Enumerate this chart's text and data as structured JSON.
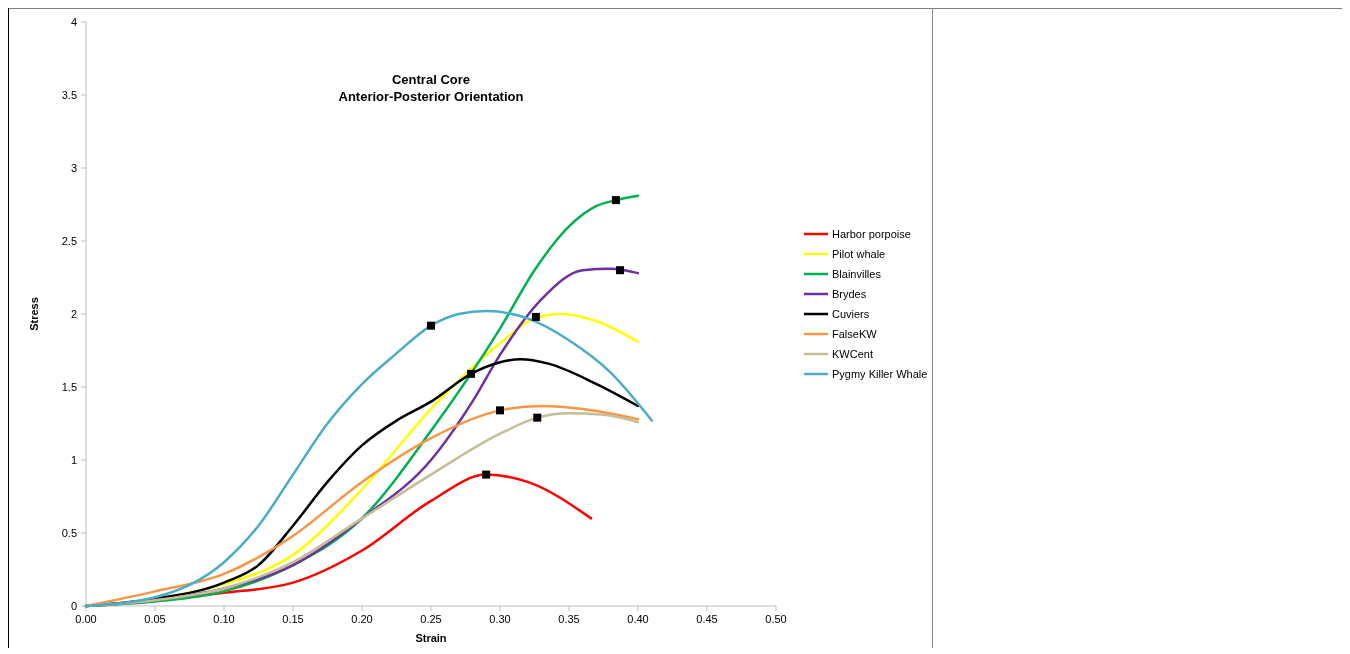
{
  "chart_data": {
    "type": "line",
    "title": "Central Core\nAnterior-Posterior Orientation",
    "xlabel": "Strain",
    "ylabel": "Stress",
    "xlim": [
      0,
      0.5
    ],
    "xticks": [
      {
        "value": 0,
        "label": "0.00"
      },
      {
        "value": 0.05,
        "label": "0.05"
      },
      {
        "value": 0.1,
        "label": "0.10"
      },
      {
        "value": 0.15,
        "label": "0.15"
      },
      {
        "value": 0.2,
        "label": "0.20"
      },
      {
        "value": 0.25,
        "label": "0.25"
      },
      {
        "value": 0.3,
        "label": "0.30"
      },
      {
        "value": 0.35,
        "label": "0.35"
      },
      {
        "value": 0.4,
        "label": "0.40"
      },
      {
        "value": 0.45,
        "label": "0.45"
      },
      {
        "value": 0.5,
        "label": "0.50"
      }
    ],
    "ylim": [
      0,
      4
    ],
    "yticks": [
      0,
      0.5,
      1,
      1.5,
      2,
      2.5,
      3,
      3.5,
      4
    ],
    "grid": false,
    "legend": "right",
    "marker": "none",
    "line_style": "solid",
    "series": [
      {
        "name": "Harbor porpoise",
        "color": "#ff0000",
        "x": [
          0,
          0.05,
          0.1,
          0.15,
          0.2,
          0.25,
          0.29,
          0.32,
          0.366
        ],
        "values": [
          0,
          0.04,
          0.09,
          0.16,
          0.38,
          0.72,
          0.9,
          0.85,
          0.6
        ]
      },
      {
        "name": "Pilot whale",
        "color": "#ffff00",
        "x": [
          0,
          0.05,
          0.1,
          0.15,
          0.2,
          0.25,
          0.3,
          0.325,
          0.345,
          0.37,
          0.4
        ],
        "values": [
          0,
          0.05,
          0.15,
          0.35,
          0.8,
          1.35,
          1.8,
          1.97,
          2,
          1.95,
          1.81
        ]
      },
      {
        "name": "Blainvilles",
        "color": "#00b050",
        "x": [
          0,
          0.05,
          0.1,
          0.15,
          0.2,
          0.25,
          0.3,
          0.325,
          0.35,
          0.37,
          0.384,
          0.4
        ],
        "values": [
          0,
          0.03,
          0.1,
          0.28,
          0.6,
          1.2,
          1.9,
          2.3,
          2.6,
          2.74,
          2.78,
          2.81
        ]
      },
      {
        "name": "Brydes",
        "color": "#7030a0",
        "x": [
          0,
          0.05,
          0.1,
          0.15,
          0.2,
          0.25,
          0.28,
          0.3,
          0.33,
          0.36,
          0.38,
          0.4
        ],
        "values": [
          0,
          0.04,
          0.12,
          0.28,
          0.6,
          1,
          1.4,
          1.72,
          2.1,
          2.3,
          2.31,
          2.28
        ]
      },
      {
        "name": "Cuviers",
        "color": "#000000",
        "x": [
          0,
          0.05,
          0.1,
          0.125,
          0.15,
          0.175,
          0.2,
          0.225,
          0.25,
          0.279,
          0.3,
          0.315,
          0.335,
          0.37,
          0.4
        ],
        "values": [
          0,
          0.05,
          0.16,
          0.28,
          0.55,
          0.85,
          1.1,
          1.27,
          1.4,
          1.59,
          1.67,
          1.69,
          1.66,
          1.52,
          1.37
        ]
      },
      {
        "name": "FalseKW",
        "color": "#f79646",
        "x": [
          0,
          0.05,
          0.1,
          0.15,
          0.2,
          0.25,
          0.3,
          0.33,
          0.36,
          0.4
        ],
        "values": [
          0,
          0.1,
          0.22,
          0.48,
          0.85,
          1.15,
          1.34,
          1.37,
          1.35,
          1.28
        ]
      },
      {
        "name": "KWCent",
        "color": "#c4bd97",
        "x": [
          0,
          0.05,
          0.1,
          0.15,
          0.2,
          0.25,
          0.3,
          0.327,
          0.35,
          0.375,
          0.4
        ],
        "values": [
          0,
          0.04,
          0.12,
          0.3,
          0.6,
          0.9,
          1.18,
          1.29,
          1.32,
          1.31,
          1.26
        ]
      },
      {
        "name": "Pygmy Killer Whale",
        "color": "#4bacc6",
        "x": [
          0,
          0.05,
          0.1,
          0.125,
          0.15,
          0.175,
          0.2,
          0.225,
          0.25,
          0.27,
          0.29,
          0.32,
          0.35,
          0.38,
          0.41
        ],
        "values": [
          0,
          0.06,
          0.3,
          0.55,
          0.9,
          1.25,
          1.52,
          1.73,
          1.92,
          2,
          2.02,
          1.97,
          1.82,
          1.6,
          1.27
        ]
      },
      {
        "type": "scatter",
        "marker": "square",
        "color": "#000000",
        "x": [
          0.29,
          0.326,
          0.384,
          0.387,
          0.279,
          0.3,
          0.327,
          0.25
        ],
        "values": [
          0.9,
          1.98,
          2.78,
          2.3,
          1.59,
          1.34,
          1.29,
          1.92
        ]
      }
    ]
  }
}
